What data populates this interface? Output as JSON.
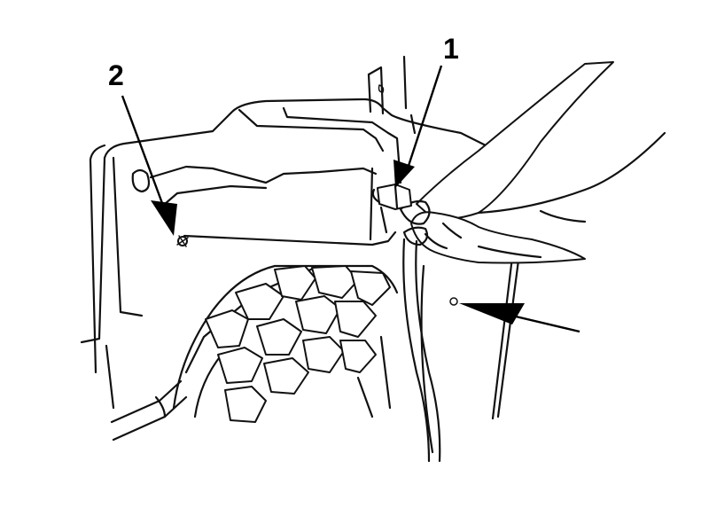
{
  "callouts": {
    "one": {
      "label": "1"
    },
    "two": {
      "label": "2"
    }
  },
  "colors": {
    "ink": "#111111",
    "background": "#ffffff"
  }
}
